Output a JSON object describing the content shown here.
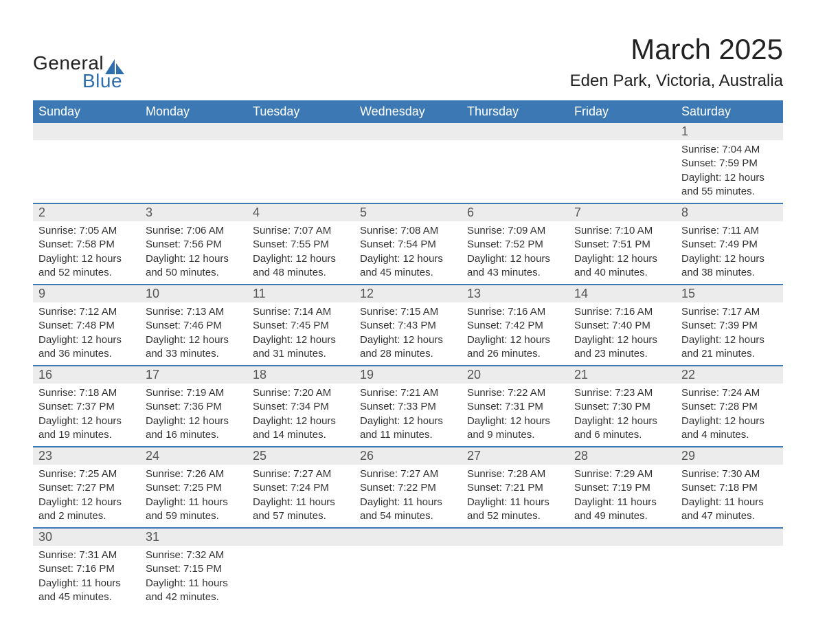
{
  "logo": {
    "word1": "General",
    "word2": "Blue"
  },
  "title": "March 2025",
  "subtitle": "Eden Park, Victoria, Australia",
  "colors": {
    "header_bg": "#3c78b4",
    "header_text": "#ffffff",
    "daynum_bg": "#ececec",
    "row_divider": "#3c78b4",
    "body_text": "#333333",
    "logo_blue": "#2f6fae"
  },
  "typography": {
    "title_fontsize": 42,
    "subtitle_fontsize": 24,
    "header_fontsize": 18,
    "daynum_fontsize": 18,
    "detail_fontsize": 15,
    "font_family": "Arial"
  },
  "days_of_week": [
    "Sunday",
    "Monday",
    "Tuesday",
    "Wednesday",
    "Thursday",
    "Friday",
    "Saturday"
  ],
  "weeks": [
    [
      null,
      null,
      null,
      null,
      null,
      null,
      {
        "n": "1",
        "sunrise": "7:04 AM",
        "sunset": "7:59 PM",
        "daylight": "12 hours and 55 minutes."
      }
    ],
    [
      {
        "n": "2",
        "sunrise": "7:05 AM",
        "sunset": "7:58 PM",
        "daylight": "12 hours and 52 minutes."
      },
      {
        "n": "3",
        "sunrise": "7:06 AM",
        "sunset": "7:56 PM",
        "daylight": "12 hours and 50 minutes."
      },
      {
        "n": "4",
        "sunrise": "7:07 AM",
        "sunset": "7:55 PM",
        "daylight": "12 hours and 48 minutes."
      },
      {
        "n": "5",
        "sunrise": "7:08 AM",
        "sunset": "7:54 PM",
        "daylight": "12 hours and 45 minutes."
      },
      {
        "n": "6",
        "sunrise": "7:09 AM",
        "sunset": "7:52 PM",
        "daylight": "12 hours and 43 minutes."
      },
      {
        "n": "7",
        "sunrise": "7:10 AM",
        "sunset": "7:51 PM",
        "daylight": "12 hours and 40 minutes."
      },
      {
        "n": "8",
        "sunrise": "7:11 AM",
        "sunset": "7:49 PM",
        "daylight": "12 hours and 38 minutes."
      }
    ],
    [
      {
        "n": "9",
        "sunrise": "7:12 AM",
        "sunset": "7:48 PM",
        "daylight": "12 hours and 36 minutes."
      },
      {
        "n": "10",
        "sunrise": "7:13 AM",
        "sunset": "7:46 PM",
        "daylight": "12 hours and 33 minutes."
      },
      {
        "n": "11",
        "sunrise": "7:14 AM",
        "sunset": "7:45 PM",
        "daylight": "12 hours and 31 minutes."
      },
      {
        "n": "12",
        "sunrise": "7:15 AM",
        "sunset": "7:43 PM",
        "daylight": "12 hours and 28 minutes."
      },
      {
        "n": "13",
        "sunrise": "7:16 AM",
        "sunset": "7:42 PM",
        "daylight": "12 hours and 26 minutes."
      },
      {
        "n": "14",
        "sunrise": "7:16 AM",
        "sunset": "7:40 PM",
        "daylight": "12 hours and 23 minutes."
      },
      {
        "n": "15",
        "sunrise": "7:17 AM",
        "sunset": "7:39 PM",
        "daylight": "12 hours and 21 minutes."
      }
    ],
    [
      {
        "n": "16",
        "sunrise": "7:18 AM",
        "sunset": "7:37 PM",
        "daylight": "12 hours and 19 minutes."
      },
      {
        "n": "17",
        "sunrise": "7:19 AM",
        "sunset": "7:36 PM",
        "daylight": "12 hours and 16 minutes."
      },
      {
        "n": "18",
        "sunrise": "7:20 AM",
        "sunset": "7:34 PM",
        "daylight": "12 hours and 14 minutes."
      },
      {
        "n": "19",
        "sunrise": "7:21 AM",
        "sunset": "7:33 PM",
        "daylight": "12 hours and 11 minutes."
      },
      {
        "n": "20",
        "sunrise": "7:22 AM",
        "sunset": "7:31 PM",
        "daylight": "12 hours and 9 minutes."
      },
      {
        "n": "21",
        "sunrise": "7:23 AM",
        "sunset": "7:30 PM",
        "daylight": "12 hours and 6 minutes."
      },
      {
        "n": "22",
        "sunrise": "7:24 AM",
        "sunset": "7:28 PM",
        "daylight": "12 hours and 4 minutes."
      }
    ],
    [
      {
        "n": "23",
        "sunrise": "7:25 AM",
        "sunset": "7:27 PM",
        "daylight": "12 hours and 2 minutes."
      },
      {
        "n": "24",
        "sunrise": "7:26 AM",
        "sunset": "7:25 PM",
        "daylight": "11 hours and 59 minutes."
      },
      {
        "n": "25",
        "sunrise": "7:27 AM",
        "sunset": "7:24 PM",
        "daylight": "11 hours and 57 minutes."
      },
      {
        "n": "26",
        "sunrise": "7:27 AM",
        "sunset": "7:22 PM",
        "daylight": "11 hours and 54 minutes."
      },
      {
        "n": "27",
        "sunrise": "7:28 AM",
        "sunset": "7:21 PM",
        "daylight": "11 hours and 52 minutes."
      },
      {
        "n": "28",
        "sunrise": "7:29 AM",
        "sunset": "7:19 PM",
        "daylight": "11 hours and 49 minutes."
      },
      {
        "n": "29",
        "sunrise": "7:30 AM",
        "sunset": "7:18 PM",
        "daylight": "11 hours and 47 minutes."
      }
    ],
    [
      {
        "n": "30",
        "sunrise": "7:31 AM",
        "sunset": "7:16 PM",
        "daylight": "11 hours and 45 minutes."
      },
      {
        "n": "31",
        "sunrise": "7:32 AM",
        "sunset": "7:15 PM",
        "daylight": "11 hours and 42 minutes."
      },
      null,
      null,
      null,
      null,
      null
    ]
  ],
  "labels": {
    "sunrise": "Sunrise:",
    "sunset": "Sunset:",
    "daylight": "Daylight:"
  }
}
